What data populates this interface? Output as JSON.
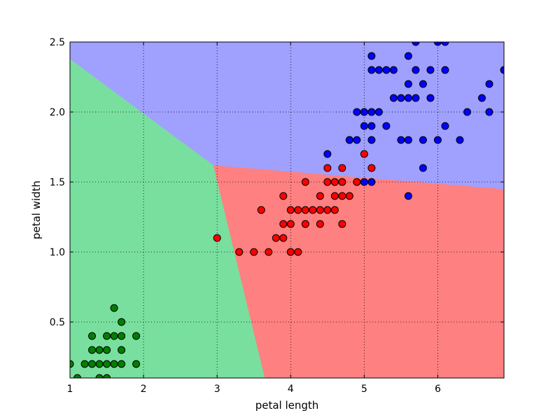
{
  "chart_data": {
    "type": "scatter",
    "title": "",
    "xlabel": "petal length",
    "ylabel": "petal width",
    "xlim": [
      1.0,
      6.9
    ],
    "ylim": [
      0.1,
      2.5
    ],
    "x_ticks": [
      1,
      2,
      3,
      4,
      5,
      6
    ],
    "x_tick_labels": [
      "1",
      "2",
      "3",
      "4",
      "5",
      "6"
    ],
    "y_ticks": [
      0.5,
      1.0,
      1.5,
      2.0,
      2.5
    ],
    "y_tick_labels": [
      "0.5",
      "1.0",
      "1.5",
      "2.0",
      "2.5"
    ],
    "grid": true,
    "grid_style": "dotted",
    "legend": "none",
    "regions": [
      {
        "color": "#79df9f",
        "polygon": [
          [
            1.0,
            0.1
          ],
          [
            1.0,
            2.38
          ],
          [
            2.95,
            1.62
          ],
          [
            3.65,
            0.1
          ]
        ]
      },
      {
        "color": "#ff8080",
        "polygon": [
          [
            3.65,
            0.1
          ],
          [
            2.95,
            1.62
          ],
          [
            6.9,
            1.45
          ],
          [
            6.9,
            0.1
          ]
        ]
      },
      {
        "color": "#a0a0ff",
        "polygon": [
          [
            1.0,
            2.38
          ],
          [
            1.0,
            2.5
          ],
          [
            6.9,
            2.5
          ],
          [
            6.9,
            1.45
          ],
          [
            2.95,
            1.62
          ]
        ]
      }
    ],
    "series": [
      {
        "color": "#008000",
        "points": [
          [
            1.0,
            0.2
          ],
          [
            1.1,
            0.1
          ],
          [
            1.2,
            0.2
          ],
          [
            1.3,
            0.2
          ],
          [
            1.3,
            0.3
          ],
          [
            1.3,
            0.4
          ],
          [
            1.4,
            0.1
          ],
          [
            1.4,
            0.2
          ],
          [
            1.4,
            0.3
          ],
          [
            1.5,
            0.1
          ],
          [
            1.5,
            0.2
          ],
          [
            1.5,
            0.3
          ],
          [
            1.5,
            0.4
          ],
          [
            1.6,
            0.2
          ],
          [
            1.6,
            0.4
          ],
          [
            1.6,
            0.6
          ],
          [
            1.7,
            0.2
          ],
          [
            1.7,
            0.3
          ],
          [
            1.7,
            0.4
          ],
          [
            1.7,
            0.5
          ],
          [
            1.9,
            0.2
          ],
          [
            1.9,
            0.4
          ]
        ]
      },
      {
        "color": "#ff0000",
        "points": [
          [
            3.0,
            1.1
          ],
          [
            3.3,
            1.0
          ],
          [
            3.5,
            1.0
          ],
          [
            3.6,
            1.3
          ],
          [
            3.7,
            1.0
          ],
          [
            3.8,
            1.1
          ],
          [
            3.9,
            1.1
          ],
          [
            3.9,
            1.2
          ],
          [
            3.9,
            1.4
          ],
          [
            4.0,
            1.0
          ],
          [
            4.0,
            1.2
          ],
          [
            4.0,
            1.3
          ],
          [
            4.1,
            1.0
          ],
          [
            4.1,
            1.3
          ],
          [
            4.2,
            1.2
          ],
          [
            4.2,
            1.3
          ],
          [
            4.2,
            1.5
          ],
          [
            4.3,
            1.3
          ],
          [
            4.4,
            1.2
          ],
          [
            4.4,
            1.3
          ],
          [
            4.4,
            1.4
          ],
          [
            4.5,
            1.3
          ],
          [
            4.5,
            1.5
          ],
          [
            4.5,
            1.6
          ],
          [
            4.6,
            1.3
          ],
          [
            4.6,
            1.4
          ],
          [
            4.6,
            1.5
          ],
          [
            4.7,
            1.2
          ],
          [
            4.7,
            1.4
          ],
          [
            4.7,
            1.5
          ],
          [
            4.7,
            1.6
          ],
          [
            4.8,
            1.4
          ],
          [
            4.8,
            1.8
          ],
          [
            4.9,
            1.5
          ],
          [
            5.0,
            1.7
          ],
          [
            5.1,
            1.6
          ]
        ]
      },
      {
        "color": "#0000ff",
        "points": [
          [
            4.5,
            1.7
          ],
          [
            4.8,
            1.8
          ],
          [
            4.9,
            1.8
          ],
          [
            4.9,
            2.0
          ],
          [
            5.0,
            1.5
          ],
          [
            5.0,
            1.9
          ],
          [
            5.0,
            2.0
          ],
          [
            5.1,
            1.5
          ],
          [
            5.1,
            1.8
          ],
          [
            5.1,
            1.9
          ],
          [
            5.1,
            2.0
          ],
          [
            5.1,
            2.3
          ],
          [
            5.1,
            2.4
          ],
          [
            5.2,
            2.0
          ],
          [
            5.2,
            2.3
          ],
          [
            5.3,
            1.9
          ],
          [
            5.3,
            2.3
          ],
          [
            5.4,
            2.1
          ],
          [
            5.4,
            2.3
          ],
          [
            5.5,
            1.8
          ],
          [
            5.5,
            2.1
          ],
          [
            5.6,
            1.4
          ],
          [
            5.6,
            1.8
          ],
          [
            5.6,
            2.1
          ],
          [
            5.6,
            2.2
          ],
          [
            5.6,
            2.4
          ],
          [
            5.7,
            2.1
          ],
          [
            5.7,
            2.3
          ],
          [
            5.7,
            2.5
          ],
          [
            5.8,
            1.6
          ],
          [
            5.8,
            1.8
          ],
          [
            5.8,
            2.2
          ],
          [
            5.9,
            2.1
          ],
          [
            5.9,
            2.3
          ],
          [
            6.0,
            1.8
          ],
          [
            6.0,
            2.5
          ],
          [
            6.1,
            1.9
          ],
          [
            6.1,
            2.3
          ],
          [
            6.1,
            2.5
          ],
          [
            6.3,
            1.8
          ],
          [
            6.4,
            2.0
          ],
          [
            6.6,
            2.1
          ],
          [
            6.7,
            2.0
          ],
          [
            6.7,
            2.2
          ],
          [
            6.9,
            2.3
          ]
        ]
      }
    ]
  }
}
